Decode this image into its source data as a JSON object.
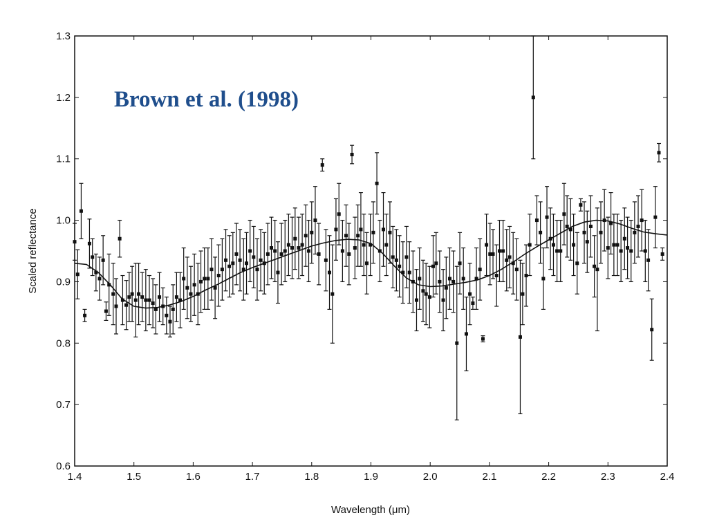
{
  "chart_data": {
    "type": "scatter",
    "title": "",
    "annotation": "Brown et al. (1998)",
    "xlabel": "Wavelength (μm)",
    "ylabel": "Scaled reflectance",
    "xlim": [
      1.4,
      2.4
    ],
    "ylim": [
      0.6,
      1.3
    ],
    "xticks": [
      "1.4",
      "1.5",
      "1.6",
      "1.7",
      "1.8",
      "1.9",
      "2.0",
      "2.1",
      "2.2",
      "2.3",
      "2.4"
    ],
    "yticks": [
      "0.6",
      "0.7",
      "0.8",
      "0.9",
      "1.0",
      "1.1",
      "1.2",
      "1.3"
    ],
    "grid": false,
    "legend": "none",
    "colors": {
      "data": "#111111",
      "annotation": "#1f4e8c",
      "background": "#ffffff"
    },
    "series": [
      {
        "type": "scatter-errorbar",
        "points": [
          [
            1.4,
            0.965,
            0.03
          ],
          [
            1.405,
            0.912,
            0.04
          ],
          [
            1.411,
            1.015,
            0.045
          ],
          [
            1.417,
            0.845,
            0.01
          ],
          [
            1.425,
            0.962,
            0.04
          ],
          [
            1.43,
            0.94,
            0.03
          ],
          [
            1.436,
            0.915,
            0.03
          ],
          [
            1.442,
            0.905,
            0.035
          ],
          [
            1.448,
            0.935,
            0.04
          ],
          [
            1.453,
            0.852,
            0.015
          ],
          [
            1.458,
            0.895,
            0.05
          ],
          [
            1.465,
            0.88,
            0.05
          ],
          [
            1.47,
            0.86,
            0.045
          ],
          [
            1.476,
            0.97,
            0.03
          ],
          [
            1.481,
            0.87,
            0.04
          ],
          [
            1.487,
            0.862,
            0.04
          ],
          [
            1.492,
            0.875,
            0.04
          ],
          [
            1.497,
            0.88,
            0.045
          ],
          [
            1.503,
            0.87,
            0.06
          ],
          [
            1.508,
            0.88,
            0.05
          ],
          [
            1.514,
            0.875,
            0.04
          ],
          [
            1.52,
            0.87,
            0.05
          ],
          [
            1.526,
            0.87,
            0.04
          ],
          [
            1.532,
            0.865,
            0.04
          ],
          [
            1.537,
            0.855,
            0.04
          ],
          [
            1.543,
            0.875,
            0.04
          ],
          [
            1.549,
            0.86,
            0.03
          ],
          [
            1.555,
            0.845,
            0.03
          ],
          [
            1.561,
            0.835,
            0.025
          ],
          [
            1.566,
            0.855,
            0.04
          ],
          [
            1.572,
            0.875,
            0.04
          ],
          [
            1.578,
            0.87,
            0.045
          ],
          [
            1.584,
            0.905,
            0.05
          ],
          [
            1.59,
            0.89,
            0.05
          ],
          [
            1.596,
            0.88,
            0.045
          ],
          [
            1.602,
            0.895,
            0.05
          ],
          [
            1.608,
            0.88,
            0.05
          ],
          [
            1.613,
            0.9,
            0.05
          ],
          [
            1.619,
            0.905,
            0.05
          ],
          [
            1.625,
            0.905,
            0.05
          ],
          [
            1.631,
            0.92,
            0.05
          ],
          [
            1.637,
            0.89,
            0.05
          ],
          [
            1.643,
            0.91,
            0.05
          ],
          [
            1.649,
            0.92,
            0.05
          ],
          [
            1.655,
            0.935,
            0.05
          ],
          [
            1.661,
            0.925,
            0.05
          ],
          [
            1.667,
            0.93,
            0.05
          ],
          [
            1.673,
            0.945,
            0.05
          ],
          [
            1.679,
            0.935,
            0.05
          ],
          [
            1.685,
            0.92,
            0.05
          ],
          [
            1.69,
            0.93,
            0.05
          ],
          [
            1.696,
            0.95,
            0.05
          ],
          [
            1.702,
            0.94,
            0.05
          ],
          [
            1.708,
            0.92,
            0.05
          ],
          [
            1.714,
            0.935,
            0.05
          ],
          [
            1.72,
            0.93,
            0.05
          ],
          [
            1.726,
            0.945,
            0.05
          ],
          [
            1.732,
            0.955,
            0.05
          ],
          [
            1.738,
            0.95,
            0.05
          ],
          [
            1.743,
            0.915,
            0.05
          ],
          [
            1.749,
            0.945,
            0.05
          ],
          [
            1.755,
            0.95,
            0.05
          ],
          [
            1.761,
            0.96,
            0.05
          ],
          [
            1.767,
            0.955,
            0.05
          ],
          [
            1.772,
            0.97,
            0.05
          ],
          [
            1.778,
            0.955,
            0.05
          ],
          [
            1.784,
            0.96,
            0.05
          ],
          [
            1.79,
            0.975,
            0.05
          ],
          [
            1.795,
            0.95,
            0.05
          ],
          [
            1.8,
            0.98,
            0.05
          ],
          [
            1.806,
            1.0,
            0.055
          ],
          [
            1.812,
            0.945,
            0.05
          ],
          [
            1.818,
            1.09,
            0.01
          ],
          [
            1.824,
            0.935,
            0.05
          ],
          [
            1.83,
            0.915,
            0.06
          ],
          [
            1.835,
            0.88,
            0.08
          ],
          [
            1.841,
            0.985,
            0.05
          ],
          [
            1.846,
            1.01,
            0.05
          ],
          [
            1.852,
            0.95,
            0.05
          ],
          [
            1.858,
            0.975,
            0.05
          ],
          [
            1.863,
            0.945,
            0.05
          ],
          [
            1.868,
            1.107,
            0.015
          ],
          [
            1.873,
            0.955,
            0.05
          ],
          [
            1.878,
            0.975,
            0.05
          ],
          [
            1.883,
            0.985,
            0.06
          ],
          [
            1.888,
            0.96,
            0.05
          ],
          [
            1.893,
            0.93,
            0.05
          ],
          [
            1.899,
            0.96,
            0.05
          ],
          [
            1.904,
            0.98,
            0.05
          ],
          [
            1.91,
            1.06,
            0.05
          ],
          [
            1.915,
            0.95,
            0.05
          ],
          [
            1.921,
            0.985,
            0.06
          ],
          [
            1.926,
            0.96,
            0.05
          ],
          [
            1.932,
            0.98,
            0.05
          ],
          [
            1.937,
            0.94,
            0.05
          ],
          [
            1.943,
            0.935,
            0.05
          ],
          [
            1.948,
            0.925,
            0.05
          ],
          [
            1.954,
            0.915,
            0.05
          ],
          [
            1.96,
            0.94,
            0.05
          ],
          [
            1.965,
            0.915,
            0.05
          ],
          [
            1.971,
            0.9,
            0.05
          ],
          [
            1.977,
            0.87,
            0.05
          ],
          [
            1.982,
            0.905,
            0.05
          ],
          [
            1.988,
            0.885,
            0.05
          ],
          [
            1.993,
            0.88,
            0.05
          ],
          [
            1.999,
            0.875,
            0.05
          ],
          [
            2.005,
            0.925,
            0.05
          ],
          [
            2.01,
            0.93,
            0.05
          ],
          [
            2.016,
            0.9,
            0.05
          ],
          [
            2.022,
            0.87,
            0.05
          ],
          [
            2.027,
            0.89,
            0.05
          ],
          [
            2.033,
            0.905,
            0.05
          ],
          [
            2.039,
            0.9,
            0.05
          ],
          [
            2.045,
            0.8,
            0.125
          ],
          [
            2.05,
            0.93,
            0.05
          ],
          [
            2.056,
            0.905,
            0.05
          ],
          [
            2.061,
            0.815,
            0.06
          ],
          [
            2.067,
            0.88,
            0.05
          ],
          [
            2.072,
            0.865,
            0.01
          ],
          [
            2.078,
            0.905,
            0.05
          ],
          [
            2.084,
            0.92,
            0.05
          ],
          [
            2.089,
            0.807,
            0.005
          ],
          [
            2.095,
            0.96,
            0.05
          ],
          [
            2.101,
            0.945,
            0.05
          ],
          [
            2.106,
            0.945,
            0.04
          ],
          [
            2.112,
            0.91,
            0.05
          ],
          [
            2.117,
            0.95,
            0.05
          ],
          [
            2.123,
            0.95,
            0.05
          ],
          [
            2.129,
            0.935,
            0.05
          ],
          [
            2.134,
            0.94,
            0.05
          ],
          [
            2.14,
            0.93,
            0.05
          ],
          [
            2.146,
            0.92,
            0.05
          ],
          [
            2.152,
            0.81,
            0.125
          ],
          [
            2.156,
            0.88,
            0.05
          ],
          [
            2.162,
            0.91,
            0.05
          ],
          [
            2.168,
            0.96,
            0.05
          ],
          [
            2.174,
            1.2,
            0.1
          ],
          [
            2.18,
            1.0,
            0.04
          ],
          [
            2.186,
            0.98,
            0.05
          ],
          [
            2.191,
            0.905,
            0.05
          ],
          [
            2.197,
            1.005,
            0.05
          ],
          [
            2.203,
            0.97,
            0.05
          ],
          [
            2.208,
            0.96,
            0.05
          ],
          [
            2.214,
            0.95,
            0.05
          ],
          [
            2.22,
            0.95,
            0.05
          ],
          [
            2.226,
            1.01,
            0.05
          ],
          [
            2.231,
            0.99,
            0.05
          ],
          [
            2.237,
            0.985,
            0.05
          ],
          [
            2.242,
            0.96,
            0.05
          ],
          [
            2.248,
            0.93,
            0.05
          ],
          [
            2.254,
            1.025,
            0.01
          ],
          [
            2.26,
            0.98,
            0.05
          ],
          [
            2.265,
            0.965,
            0.05
          ],
          [
            2.271,
            0.99,
            0.05
          ],
          [
            2.277,
            0.925,
            0.05
          ],
          [
            2.282,
            0.92,
            0.1
          ],
          [
            2.288,
            0.98,
            0.05
          ],
          [
            2.294,
            1.0,
            0.05
          ],
          [
            2.3,
            0.955,
            0.05
          ],
          [
            2.305,
            0.995,
            0.05
          ],
          [
            2.31,
            0.96,
            0.05
          ],
          [
            2.316,
            0.96,
            0.05
          ],
          [
            2.322,
            0.95,
            0.05
          ],
          [
            2.328,
            0.97,
            0.05
          ],
          [
            2.333,
            0.955,
            0.05
          ],
          [
            2.339,
            0.95,
            0.05
          ],
          [
            2.345,
            0.98,
            0.05
          ],
          [
            2.351,
            0.99,
            0.05
          ],
          [
            2.357,
            1.0,
            0.05
          ],
          [
            2.363,
            0.95,
            0.05
          ],
          [
            2.368,
            0.935,
            0.05
          ],
          [
            2.374,
            0.822,
            0.05
          ],
          [
            2.38,
            1.005,
            0.05
          ],
          [
            2.386,
            1.11,
            0.015
          ],
          [
            2.392,
            0.945,
            0.01
          ]
        ]
      },
      {
        "type": "line",
        "x": [
          1.4,
          1.42,
          1.44,
          1.46,
          1.48,
          1.5,
          1.52,
          1.54,
          1.56,
          1.58,
          1.6,
          1.62,
          1.64,
          1.66,
          1.68,
          1.7,
          1.72,
          1.74,
          1.76,
          1.78,
          1.8,
          1.82,
          1.84,
          1.86,
          1.88,
          1.9,
          1.92,
          1.94,
          1.96,
          1.98,
          2.0,
          2.02,
          2.04,
          2.06,
          2.08,
          2.1,
          2.12,
          2.14,
          2.16,
          2.18,
          2.2,
          2.22,
          2.24,
          2.26,
          2.28,
          2.3,
          2.32,
          2.34,
          2.36,
          2.38,
          2.4
        ],
        "y": [
          0.93,
          0.928,
          0.915,
          0.895,
          0.872,
          0.86,
          0.857,
          0.858,
          0.862,
          0.868,
          0.876,
          0.886,
          0.895,
          0.905,
          0.915,
          0.923,
          0.93,
          0.937,
          0.944,
          0.951,
          0.958,
          0.963,
          0.967,
          0.969,
          0.968,
          0.962,
          0.946,
          0.925,
          0.906,
          0.895,
          0.892,
          0.893,
          0.896,
          0.899,
          0.903,
          0.91,
          0.92,
          0.932,
          0.945,
          0.957,
          0.968,
          0.979,
          0.99,
          0.997,
          1.0,
          0.999,
          0.994,
          0.987,
          0.981,
          0.978,
          0.976
        ]
      }
    ]
  }
}
